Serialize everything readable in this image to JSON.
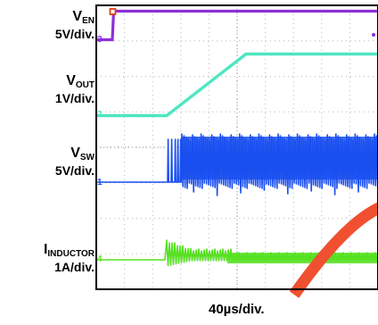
{
  "chart_data": {
    "type": "line",
    "channels": [
      {
        "id": "ch3",
        "marker": "3",
        "name_main": "V",
        "name_sub": "EN",
        "scale": "5V/div.",
        "color": "#8e2fd8"
      },
      {
        "id": "ch2",
        "marker": "2",
        "name_main": "V",
        "name_sub": "OUT",
        "scale": "1V/div.",
        "color": "#4ee6c0"
      },
      {
        "id": "ch1",
        "marker": "1",
        "name_main": "V",
        "name_sub": "SW",
        "scale": "5V/div.",
        "color": "#1a4ff0"
      },
      {
        "id": "ch4",
        "marker": "4",
        "name_main": "I",
        "name_sub": "INDUCTOR",
        "scale": "1A/div.",
        "color": "#55e020"
      }
    ],
    "timebase": "40µs/div.",
    "horizontal_divisions": 10,
    "vertical_divisions": 8,
    "grid": true,
    "trigger_marker_color": "#e04010",
    "watermark_color": "#f05030"
  }
}
